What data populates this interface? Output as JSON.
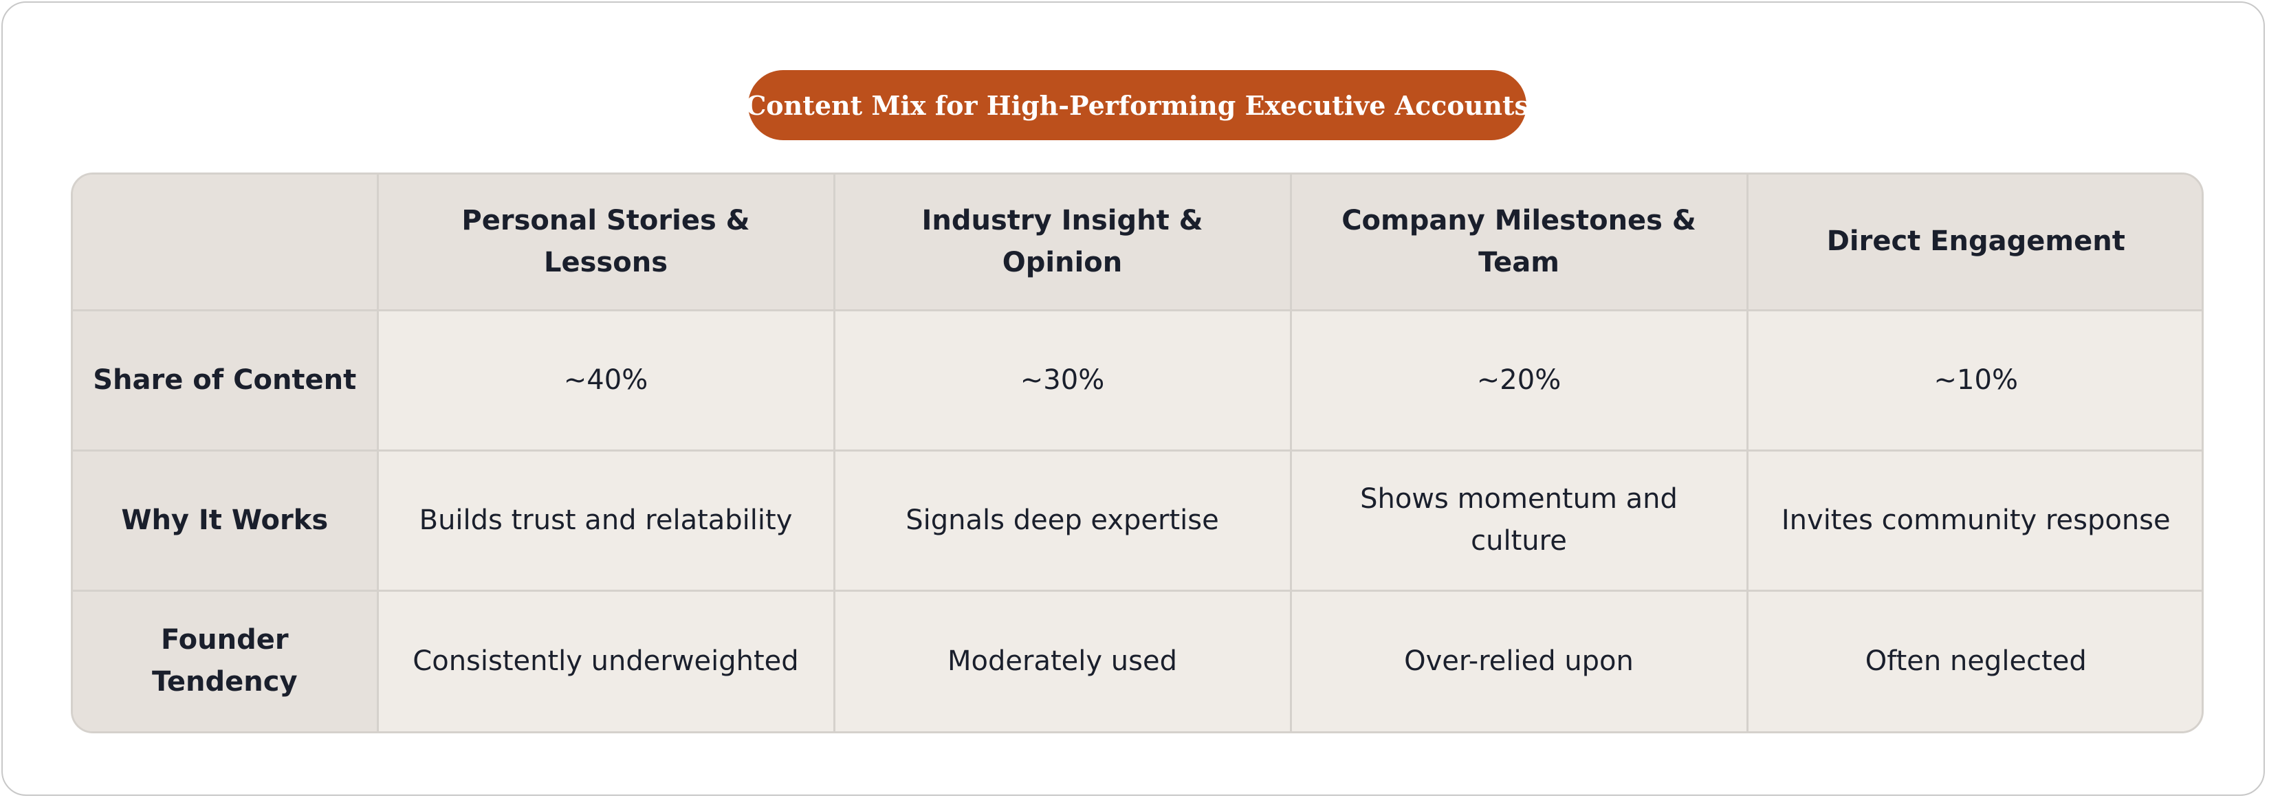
{
  "title": "Content Mix for High-Performing Executive Accounts",
  "table": {
    "corner": "",
    "columns": [
      "Personal Stories & Lessons",
      "Industry Insight & Opinion",
      "Company Milestones & Team",
      "Direct Engagement"
    ],
    "rows": [
      {
        "label": "Share of Content",
        "cells": [
          "~40%",
          "~30%",
          "~20%",
          "~10%"
        ]
      },
      {
        "label": "Why It Works",
        "cells": [
          "Builds trust and relatability",
          "Signals deep expertise",
          "Shows momentum and culture",
          "Invites community response"
        ]
      },
      {
        "label": "Founder Tendency",
        "cells": [
          "Consistently underweighted",
          "Moderately used",
          "Over-relied upon",
          "Often neglected"
        ]
      }
    ]
  },
  "colors": {
    "accent": "#bc501c",
    "header_bg": "#e6e1dc",
    "cell_bg": "#f0ece7",
    "border": "#d5d1cc",
    "text": "#1a1f2c"
  }
}
